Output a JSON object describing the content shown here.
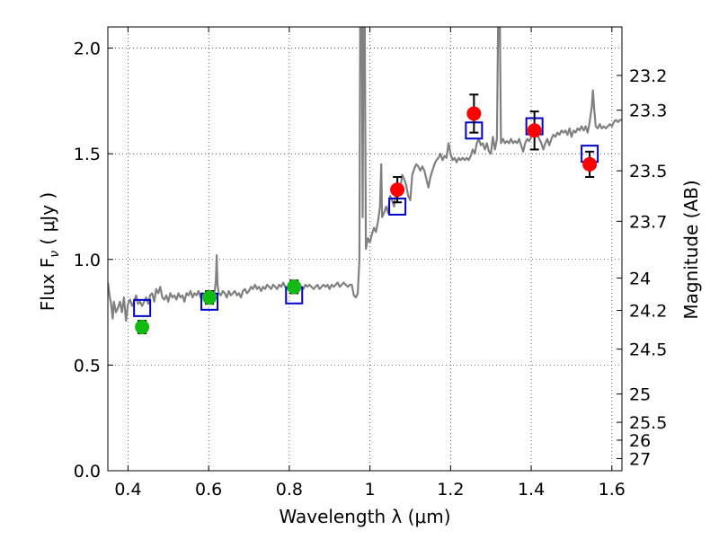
{
  "chart_data": {
    "type": "scatter",
    "xlabel": "Wavelength  λ (μm)",
    "ylabel": "Flux  F",
    "ylabel_sub": "ν",
    "ylabel_unit": "  ( μJy )",
    "y2label": "Magnitude (AB)",
    "xlim": [
      0.35,
      1.625
    ],
    "ylim": [
      0.0,
      2.1
    ],
    "grid": true,
    "x_ticks": [
      {
        "value": 0.4,
        "label": "0.4"
      },
      {
        "value": 0.6,
        "label": "0.6"
      },
      {
        "value": 0.8,
        "label": "0.8"
      },
      {
        "value": 1.0,
        "label": "1"
      },
      {
        "value": 1.2,
        "label": "1.2"
      },
      {
        "value": 1.4,
        "label": "1.4"
      },
      {
        "value": 1.6,
        "label": "1.6"
      }
    ],
    "y_ticks": [
      {
        "value": 0.0,
        "label": "0.0"
      },
      {
        "value": 0.5,
        "label": "0.5"
      },
      {
        "value": 1.0,
        "label": "1.0"
      },
      {
        "value": 1.5,
        "label": "1.5"
      },
      {
        "value": 2.0,
        "label": "2.0"
      }
    ],
    "y2_ticks": [
      {
        "flux": 1.8706,
        "label": "23.2"
      },
      {
        "flux": 1.7061,
        "label": "23.3"
      },
      {
        "flux": 1.4191,
        "label": "23.5"
      },
      {
        "flux": 1.1803,
        "label": "23.7"
      },
      {
        "flux": 0.912,
        "label": "24"
      },
      {
        "flux": 0.7586,
        "label": "24.2"
      },
      {
        "flux": 0.5754,
        "label": "24.5"
      },
      {
        "flux": 0.3631,
        "label": "25"
      },
      {
        "flux": 0.2291,
        "label": "25.5"
      },
      {
        "flux": 0.1445,
        "label": "26"
      },
      {
        "flux": 0.0575,
        "label": "27"
      }
    ],
    "series": [
      {
        "kind": "model_spectrum",
        "color": "#808080",
        "points": [
          [
            0.35,
            0.89
          ],
          [
            0.355,
            0.82
          ],
          [
            0.358,
            0.79
          ],
          [
            0.362,
            0.72
          ],
          [
            0.365,
            0.8
          ],
          [
            0.37,
            0.75
          ],
          [
            0.375,
            0.77
          ],
          [
            0.38,
            0.8
          ],
          [
            0.385,
            0.75
          ],
          [
            0.39,
            0.82
          ],
          [
            0.395,
            0.71
          ],
          [
            0.4,
            0.79
          ],
          [
            0.405,
            0.81
          ],
          [
            0.41,
            0.78
          ],
          [
            0.415,
            0.8
          ],
          [
            0.42,
            0.83
          ],
          [
            0.425,
            0.79
          ],
          [
            0.43,
            0.8
          ],
          [
            0.435,
            0.78
          ],
          [
            0.44,
            0.8
          ],
          [
            0.445,
            0.82
          ],
          [
            0.45,
            0.79
          ],
          [
            0.455,
            0.83
          ],
          [
            0.46,
            0.84
          ],
          [
            0.465,
            0.8
          ],
          [
            0.47,
            0.86
          ],
          [
            0.475,
            0.84
          ],
          [
            0.48,
            0.87
          ],
          [
            0.485,
            0.82
          ],
          [
            0.49,
            0.81
          ],
          [
            0.495,
            0.83
          ],
          [
            0.5,
            0.8
          ],
          [
            0.505,
            0.84
          ],
          [
            0.51,
            0.82
          ],
          [
            0.515,
            0.83
          ],
          [
            0.52,
            0.81
          ],
          [
            0.525,
            0.84
          ],
          [
            0.53,
            0.82
          ],
          [
            0.535,
            0.83
          ],
          [
            0.54,
            0.8
          ],
          [
            0.545,
            0.84
          ],
          [
            0.55,
            0.83
          ],
          [
            0.555,
            0.85
          ],
          [
            0.56,
            0.82
          ],
          [
            0.565,
            0.84
          ],
          [
            0.57,
            0.83
          ],
          [
            0.575,
            0.85
          ],
          [
            0.58,
            0.82
          ],
          [
            0.585,
            0.84
          ],
          [
            0.59,
            0.83
          ],
          [
            0.595,
            0.84
          ],
          [
            0.6,
            0.82
          ],
          [
            0.605,
            0.85
          ],
          [
            0.61,
            0.83
          ],
          [
            0.615,
            0.85
          ],
          [
            0.618,
            0.9
          ],
          [
            0.62,
            1.02
          ],
          [
            0.622,
            0.88
          ],
          [
            0.625,
            0.84
          ],
          [
            0.63,
            0.83
          ],
          [
            0.635,
            0.85
          ],
          [
            0.64,
            0.84
          ],
          [
            0.645,
            0.82
          ],
          [
            0.65,
            0.85
          ],
          [
            0.655,
            0.83
          ],
          [
            0.66,
            0.84
          ],
          [
            0.665,
            0.85
          ],
          [
            0.67,
            0.83
          ],
          [
            0.675,
            0.84
          ],
          [
            0.68,
            0.82
          ],
          [
            0.685,
            0.85
          ],
          [
            0.69,
            0.86
          ],
          [
            0.695,
            0.84
          ],
          [
            0.7,
            0.85
          ],
          [
            0.705,
            0.87
          ],
          [
            0.71,
            0.86
          ],
          [
            0.715,
            0.88
          ],
          [
            0.72,
            0.86
          ],
          [
            0.725,
            0.87
          ],
          [
            0.73,
            0.85
          ],
          [
            0.735,
            0.87
          ],
          [
            0.74,
            0.86
          ],
          [
            0.745,
            0.88
          ],
          [
            0.75,
            0.87
          ],
          [
            0.755,
            0.86
          ],
          [
            0.76,
            0.88
          ],
          [
            0.765,
            0.87
          ],
          [
            0.77,
            0.86
          ],
          [
            0.775,
            0.88
          ],
          [
            0.78,
            0.87
          ],
          [
            0.785,
            0.89
          ],
          [
            0.79,
            0.87
          ],
          [
            0.795,
            0.86
          ],
          [
            0.8,
            0.88
          ],
          [
            0.805,
            0.87
          ],
          [
            0.81,
            0.88
          ],
          [
            0.815,
            0.86
          ],
          [
            0.82,
            0.87
          ],
          [
            0.825,
            0.88
          ],
          [
            0.83,
            0.87
          ],
          [
            0.835,
            0.86
          ],
          [
            0.84,
            0.88
          ],
          [
            0.845,
            0.87
          ],
          [
            0.85,
            0.88
          ],
          [
            0.855,
            0.87
          ],
          [
            0.86,
            0.86
          ],
          [
            0.865,
            0.87
          ],
          [
            0.87,
            0.88
          ],
          [
            0.875,
            0.86
          ],
          [
            0.88,
            0.87
          ],
          [
            0.885,
            0.88
          ],
          [
            0.89,
            0.87
          ],
          [
            0.895,
            0.88
          ],
          [
            0.9,
            0.86
          ],
          [
            0.905,
            0.88
          ],
          [
            0.91,
            0.87
          ],
          [
            0.915,
            0.88
          ],
          [
            0.92,
            0.89
          ],
          [
            0.925,
            0.87
          ],
          [
            0.93,
            0.88
          ],
          [
            0.935,
            0.89
          ],
          [
            0.94,
            0.88
          ],
          [
            0.945,
            0.87
          ],
          [
            0.95,
            0.88
          ],
          [
            0.955,
            0.88
          ],
          [
            0.96,
            0.83
          ],
          [
            0.965,
            0.82
          ],
          [
            0.97,
            0.84
          ],
          [
            0.974,
            1.0
          ],
          [
            0.976,
            2.15
          ],
          [
            0.98,
            2.15
          ],
          [
            0.982,
            1.2
          ],
          [
            0.984,
            2.15
          ],
          [
            0.987,
            2.15
          ],
          [
            0.99,
            1.05
          ],
          [
            0.995,
            1.1
          ],
          [
            1.0,
            1.08
          ],
          [
            1.005,
            1.12
          ],
          [
            1.01,
            1.15
          ],
          [
            1.015,
            1.13
          ],
          [
            1.02,
            1.18
          ],
          [
            1.025,
            1.25
          ],
          [
            1.028,
            1.45
          ],
          [
            1.03,
            1.2
          ],
          [
            1.035,
            1.22
          ],
          [
            1.04,
            1.25
          ],
          [
            1.045,
            1.22
          ],
          [
            1.05,
            1.3
          ],
          [
            1.055,
            1.28
          ],
          [
            1.06,
            1.25
          ],
          [
            1.065,
            1.33
          ],
          [
            1.07,
            1.35
          ],
          [
            1.075,
            1.33
          ],
          [
            1.08,
            1.4
          ],
          [
            1.085,
            1.38
          ],
          [
            1.09,
            1.35
          ],
          [
            1.095,
            1.3
          ],
          [
            1.1,
            1.28
          ],
          [
            1.105,
            1.4
          ],
          [
            1.11,
            1.43
          ],
          [
            1.115,
            1.45
          ],
          [
            1.12,
            1.44
          ],
          [
            1.125,
            1.42
          ],
          [
            1.13,
            1.44
          ],
          [
            1.135,
            1.42
          ],
          [
            1.14,
            1.38
          ],
          [
            1.145,
            1.34
          ],
          [
            1.15,
            1.39
          ],
          [
            1.155,
            1.42
          ],
          [
            1.16,
            1.45
          ],
          [
            1.165,
            1.47
          ],
          [
            1.17,
            1.48
          ],
          [
            1.175,
            1.5
          ],
          [
            1.18,
            1.47
          ],
          [
            1.185,
            1.49
          ],
          [
            1.19,
            1.48
          ],
          [
            1.195,
            1.55
          ],
          [
            1.2,
            1.5
          ],
          [
            1.205,
            1.47
          ],
          [
            1.21,
            1.48
          ],
          [
            1.215,
            1.46
          ],
          [
            1.22,
            1.48
          ],
          [
            1.225,
            1.47
          ],
          [
            1.23,
            1.48
          ],
          [
            1.235,
            1.47
          ],
          [
            1.24,
            1.48
          ],
          [
            1.245,
            1.47
          ],
          [
            1.25,
            1.49
          ],
          [
            1.255,
            1.52
          ],
          [
            1.26,
            1.5
          ],
          [
            1.265,
            1.55
          ],
          [
            1.27,
            1.57
          ],
          [
            1.275,
            1.54
          ],
          [
            1.28,
            1.55
          ],
          [
            1.285,
            1.52
          ],
          [
            1.29,
            1.55
          ],
          [
            1.295,
            1.51
          ],
          [
            1.3,
            1.5
          ],
          [
            1.305,
            1.58
          ],
          [
            1.31,
            1.52
          ],
          [
            1.315,
            1.57
          ],
          [
            1.318,
            2.15
          ],
          [
            1.322,
            2.15
          ],
          [
            1.325,
            1.55
          ],
          [
            1.33,
            1.57
          ],
          [
            1.335,
            1.55
          ],
          [
            1.34,
            1.56
          ],
          [
            1.345,
            1.55
          ],
          [
            1.35,
            1.57
          ],
          [
            1.355,
            1.55
          ],
          [
            1.36,
            1.56
          ],
          [
            1.365,
            1.55
          ],
          [
            1.37,
            1.57
          ],
          [
            1.375,
            1.54
          ],
          [
            1.38,
            1.51
          ],
          [
            1.385,
            1.55
          ],
          [
            1.39,
            1.57
          ],
          [
            1.395,
            1.56
          ],
          [
            1.4,
            1.58
          ],
          [
            1.405,
            1.6
          ],
          [
            1.41,
            1.61
          ],
          [
            1.415,
            1.59
          ],
          [
            1.42,
            1.57
          ],
          [
            1.425,
            1.55
          ],
          [
            1.43,
            1.52
          ],
          [
            1.435,
            1.55
          ],
          [
            1.44,
            1.57
          ],
          [
            1.445,
            1.54
          ],
          [
            1.45,
            1.57
          ],
          [
            1.455,
            1.59
          ],
          [
            1.46,
            1.58
          ],
          [
            1.465,
            1.6
          ],
          [
            1.47,
            1.59
          ],
          [
            1.475,
            1.61
          ],
          [
            1.48,
            1.6
          ],
          [
            1.485,
            1.61
          ],
          [
            1.49,
            1.59
          ],
          [
            1.495,
            1.62
          ],
          [
            1.5,
            1.58
          ],
          [
            1.505,
            1.61
          ],
          [
            1.51,
            1.6
          ],
          [
            1.515,
            1.62
          ],
          [
            1.52,
            1.61
          ],
          [
            1.525,
            1.63
          ],
          [
            1.53,
            1.61
          ],
          [
            1.535,
            1.63
          ],
          [
            1.54,
            1.6
          ],
          [
            1.545,
            1.65
          ],
          [
            1.55,
            1.72
          ],
          [
            1.553,
            1.8
          ],
          [
            1.556,
            1.72
          ],
          [
            1.56,
            1.63
          ],
          [
            1.565,
            1.62
          ],
          [
            1.57,
            1.64
          ],
          [
            1.575,
            1.62
          ],
          [
            1.58,
            1.63
          ],
          [
            1.585,
            1.62
          ],
          [
            1.59,
            1.63
          ],
          [
            1.595,
            1.64
          ],
          [
            1.6,
            1.63
          ],
          [
            1.605,
            1.65
          ],
          [
            1.61,
            1.66
          ],
          [
            1.615,
            1.65
          ],
          [
            1.62,
            1.66
          ],
          [
            1.625,
            1.66
          ]
        ]
      },
      {
        "kind": "model_photometry",
        "marker": "open-square",
        "color": "#0000cc",
        "x": [
          0.435,
          0.602,
          0.812,
          1.068,
          1.258,
          1.408,
          1.545
        ],
        "y": [
          0.77,
          0.8,
          0.83,
          1.25,
          1.61,
          1.63,
          1.5
        ]
      },
      {
        "kind": "optical_photometry",
        "marker": "filled-circle",
        "color": "#11bb11",
        "x": [
          0.435,
          0.602,
          0.812
        ],
        "y": [
          0.68,
          0.82,
          0.87
        ],
        "yerr": [
          0.03,
          0.03,
          0.03
        ]
      },
      {
        "kind": "nir_photometry",
        "marker": "filled-circle",
        "color": "#ff0000",
        "x": [
          1.068,
          1.258,
          1.408,
          1.545
        ],
        "y": [
          1.33,
          1.69,
          1.61,
          1.45
        ],
        "yerr": [
          0.06,
          0.09,
          0.09,
          0.06
        ]
      }
    ]
  }
}
